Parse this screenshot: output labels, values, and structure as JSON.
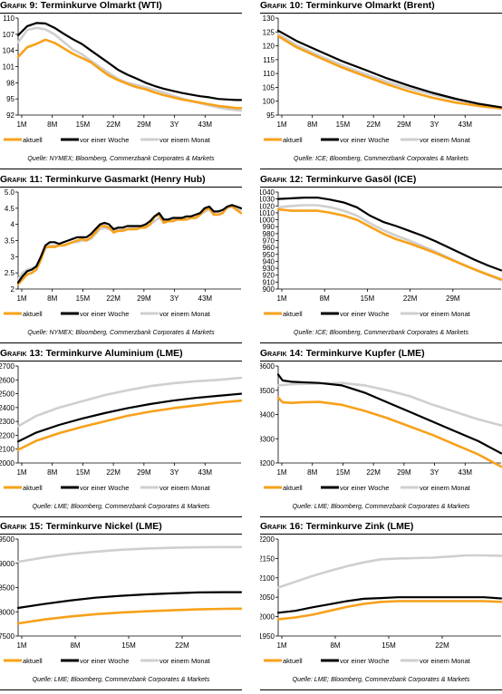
{
  "figure_prefix": "Grafik",
  "colors": {
    "aktuell": "#f7a11a",
    "woche": "#000000",
    "monat": "#cfcfcf"
  },
  "chart_data": [
    {
      "type": "line",
      "number": "9:",
      "title": "Terminkurve Olmarkt (WTI)",
      "xticks": [
        "1M",
        "8M",
        "15M",
        "22M",
        "29M",
        "3Y",
        "43M"
      ],
      "ylim": [
        92,
        110
      ],
      "yticks": [
        "92",
        "95",
        "98",
        "101",
        "104",
        "107",
        "110"
      ],
      "legend": [
        "aktuell",
        "vor einer Woche",
        "vor einem Monat"
      ],
      "legend_offsets": [
        0,
        63,
        151
      ],
      "source": "Quelle: NYMEX; Bloomberg, Commerzbank Corporates & Markets",
      "x": [
        1,
        3,
        5,
        7,
        9,
        11,
        13,
        15,
        17,
        19,
        21,
        23,
        25,
        27,
        29,
        31,
        33,
        35,
        37,
        39,
        41,
        43,
        45,
        47,
        49,
        50
      ],
      "series": [
        {
          "name": "aktuell",
          "values": [
            102.8,
            104.6,
            105.2,
            106.0,
            105.4,
            104.4,
            103.4,
            102.6,
            101.8,
            100.5,
            99.3,
            98.5,
            97.8,
            97.2,
            96.8,
            96.2,
            95.7,
            95.3,
            94.9,
            94.6,
            94.3,
            94.0,
            93.7,
            93.5,
            93.3,
            93.3
          ]
        },
        {
          "name": "vor einer Woche",
          "values": [
            106.8,
            108.5,
            109.1,
            109.0,
            108.2,
            107.1,
            106.1,
            105.2,
            104.0,
            102.8,
            101.6,
            100.4,
            99.5,
            98.8,
            98.0,
            97.4,
            96.9,
            96.5,
            96.1,
            95.8,
            95.5,
            95.3,
            95.0,
            94.9,
            94.8,
            94.8
          ]
        },
        {
          "name": "vor einem Monat",
          "values": [
            105.5,
            107.8,
            108.2,
            107.9,
            107.0,
            105.6,
            104.2,
            103.3,
            102.1,
            100.9,
            99.8,
            98.7,
            98.0,
            97.6,
            97.2,
            96.7,
            96.2,
            95.6,
            95.1,
            94.6,
            94.2,
            93.8,
            93.4,
            93.1,
            92.9,
            92.8
          ]
        }
      ]
    },
    {
      "type": "line",
      "number": "10:",
      "title": "Terminkurve Olmarkt (Brent)",
      "xticks": [
        "1M",
        "8M",
        "15M",
        "22M",
        "29M",
        "3Y",
        "43M"
      ],
      "ylim": [
        95,
        130
      ],
      "yticks": [
        "95",
        "100",
        "105",
        "110",
        "115",
        "120",
        "125",
        "130"
      ],
      "legend": [
        "aktuell",
        "vor einer Woche",
        "vor einem Monat"
      ],
      "legend_offsets": [
        0,
        63,
        151
      ],
      "source": "Quelle: ICE; Bloomberg, Commerzbank Corporates & Markets",
      "x": [
        1,
        5,
        10,
        15,
        20,
        25,
        30,
        35,
        40,
        45,
        50
      ],
      "series": [
        {
          "name": "aktuell",
          "values": [
            123.5,
            119.5,
            115.8,
            112.2,
            109.1,
            106.1,
            103.4,
            101.2,
            99.5,
            98.3,
            97.4
          ]
        },
        {
          "name": "vor einer Woche",
          "values": [
            125.5,
            121.8,
            118.1,
            114.5,
            111.4,
            108.2,
            105.5,
            103.0,
            100.9,
            99.1,
            97.8
          ]
        },
        {
          "name": "vor einem Monat",
          "values": [
            124.3,
            120.3,
            116.5,
            113.0,
            109.9,
            107.0,
            104.5,
            102.4,
            100.6,
            99.0,
            97.7
          ]
        }
      ]
    },
    {
      "type": "line",
      "number": "11:",
      "title": "Terminkurve Gasmarkt (Henry Hub)",
      "xticks": [
        "1M",
        "8M",
        "15M",
        "22M",
        "29M",
        "3Y",
        "43M"
      ],
      "ylim": [
        2.0,
        5.0
      ],
      "yticks": [
        "2",
        "2.5",
        "3",
        "3.5",
        "4",
        "4.5",
        "5.0"
      ],
      "legend": [
        "aktuell",
        "vor einer Woche",
        "vor einem Monat"
      ],
      "legend_offsets": [
        0,
        63,
        151
      ],
      "source": "Quelle: NYMEX; Bloomberg, Commerzbank Corporates & Markets",
      "x": [
        1,
        2,
        3,
        4,
        5,
        6,
        7,
        8,
        9,
        10,
        11,
        12,
        13,
        14,
        15,
        16,
        17,
        18,
        19,
        20,
        21,
        22,
        23,
        24,
        25,
        26,
        27,
        28,
        29,
        30,
        31,
        32,
        33,
        34,
        35,
        36,
        37,
        38,
        39,
        40,
        41,
        42,
        43,
        44,
        45,
        46,
        47,
        48,
        49,
        50
      ],
      "series": [
        {
          "name": "aktuell",
          "values": [
            2.15,
            2.3,
            2.45,
            2.5,
            2.6,
            2.9,
            3.3,
            3.3,
            3.3,
            3.35,
            3.35,
            3.4,
            3.45,
            3.5,
            3.55,
            3.5,
            3.6,
            3.75,
            3.95,
            3.95,
            3.9,
            3.75,
            3.8,
            3.8,
            3.85,
            3.85,
            3.85,
            3.9,
            3.9,
            4.0,
            4.25,
            4.3,
            4.05,
            4.1,
            4.1,
            4.15,
            4.15,
            4.15,
            4.2,
            4.2,
            4.3,
            4.45,
            4.5,
            4.3,
            4.3,
            4.35,
            4.55,
            4.55,
            4.45,
            4.35
          ]
        },
        {
          "name": "vor einer Woche",
          "values": [
            2.2,
            2.4,
            2.55,
            2.6,
            2.7,
            3.0,
            3.35,
            3.45,
            3.45,
            3.4,
            3.45,
            3.5,
            3.55,
            3.6,
            3.6,
            3.6,
            3.7,
            3.85,
            4.0,
            4.05,
            4.0,
            3.85,
            3.9,
            3.9,
            3.95,
            3.95,
            3.95,
            3.95,
            4.0,
            4.1,
            4.25,
            4.35,
            4.15,
            4.15,
            4.2,
            4.2,
            4.2,
            4.25,
            4.25,
            4.3,
            4.35,
            4.5,
            4.55,
            4.4,
            4.4,
            4.45,
            4.55,
            4.6,
            4.55,
            4.5
          ]
        },
        {
          "name": "vor einem Monat",
          "values": [
            2.3,
            2.5,
            2.6,
            2.65,
            2.7,
            2.95,
            3.25,
            3.35,
            3.35,
            3.35,
            3.35,
            3.4,
            3.45,
            3.45,
            3.5,
            3.5,
            3.55,
            3.7,
            3.85,
            3.9,
            3.85,
            3.8,
            3.85,
            3.85,
            3.85,
            3.9,
            3.9,
            3.9,
            3.95,
            4.0,
            4.1,
            4.2,
            4.1,
            4.1,
            4.15,
            4.15,
            4.15,
            4.2,
            4.2,
            4.2,
            4.3,
            4.4,
            4.45,
            4.35,
            4.4,
            4.4,
            4.5,
            4.55,
            4.5,
            4.45
          ]
        }
      ]
    },
    {
      "type": "line",
      "number": "12:",
      "title": "Terminkurve Gasöl (ICE)",
      "xticks": [
        "1M",
        "8M",
        "15M",
        "22M",
        "29M"
      ],
      "ylim": [
        900,
        1040
      ],
      "yticks": [
        "900",
        "910",
        "920",
        "930",
        "940",
        "950",
        "960",
        "970",
        "980",
        "990",
        "1000",
        "1010",
        "1020",
        "1030",
        "1040"
      ],
      "legend": [
        "aktuell",
        "vor einer Woche",
        "vor einem Monat"
      ],
      "legend_offsets": [
        0,
        63,
        151
      ],
      "source": "Quelle: ICE; Bloomberg, Commerzbank Corporates & Markets",
      "x": [
        1,
        3,
        5,
        7,
        9,
        11,
        13,
        15,
        17,
        19,
        21,
        23,
        25,
        27,
        29,
        31,
        33,
        35
      ],
      "series": [
        {
          "name": "aktuell",
          "values": [
            1015,
            1013,
            1013,
            1013,
            1010,
            1006,
            1000,
            990,
            980,
            972,
            966,
            959,
            952,
            944,
            936,
            928,
            921,
            914
          ]
        },
        {
          "name": "vor einer Woche",
          "values": [
            1030,
            1031,
            1032,
            1032,
            1029,
            1025,
            1018,
            1006,
            997,
            991,
            984,
            977,
            969,
            960,
            951,
            942,
            934,
            927
          ]
        },
        {
          "name": "vor einem Monat",
          "values": [
            1018,
            1020,
            1021,
            1021,
            1018,
            1013,
            1006,
            995,
            985,
            977,
            970,
            962,
            954,
            945,
            936,
            928,
            920,
            913
          ]
        }
      ]
    },
    {
      "type": "line",
      "number": "13:",
      "title": "Terminkurve Aluminium (LME)",
      "xticks": [
        "1M",
        "8M",
        "15M",
        "22M",
        "29M",
        "3Y",
        "43M"
      ],
      "ylim": [
        2000,
        2700
      ],
      "yticks": [
        "2000",
        "2100",
        "2200",
        "2300",
        "2400",
        "2500",
        "2600",
        "2700"
      ],
      "legend": [
        "aktuell",
        "vor einer Woche",
        "vor einem Monat"
      ],
      "legend_offsets": [
        0,
        63,
        151
      ],
      "source": "Quelle: LME; Bloomberg, Commerzbank Corporates & Markets",
      "x": [
        1,
        5,
        10,
        15,
        20,
        25,
        30,
        35,
        40,
        45,
        50
      ],
      "series": [
        {
          "name": "aktuell",
          "values": [
            2095,
            2160,
            2215,
            2260,
            2300,
            2340,
            2370,
            2395,
            2415,
            2435,
            2450
          ]
        },
        {
          "name": "vor einer Woche",
          "values": [
            2155,
            2220,
            2275,
            2320,
            2360,
            2395,
            2425,
            2450,
            2470,
            2485,
            2500
          ]
        },
        {
          "name": "vor einem Monat",
          "values": [
            2265,
            2340,
            2400,
            2445,
            2490,
            2525,
            2555,
            2575,
            2590,
            2600,
            2615
          ]
        }
      ]
    },
    {
      "type": "line",
      "number": "14:",
      "title": "Terminkurve Kupfer (LME)",
      "xticks": [
        "1M",
        "8M",
        "15M",
        "22M",
        "29M",
        "3Y",
        "43M"
      ],
      "ylim": [
        8200,
        8600
      ],
      "yticks": [
        "8200",
        "8300",
        "8400",
        "8500",
        "8600"
      ],
      "legend": [
        "aktuell",
        "vor einer Woche",
        "vor einem Monat"
      ],
      "legend_offsets": [
        0,
        63,
        151
      ],
      "source": "Quelle: LME; Bloomberg, Commerzbank Corporates & Markets",
      "x": [
        1,
        2,
        4,
        6,
        10,
        15,
        20,
        25,
        30,
        35,
        40,
        45,
        50
      ],
      "series": [
        {
          "name": "aktuell",
          "values": [
            8470,
            8450,
            8448,
            8450,
            8452,
            8440,
            8415,
            8385,
            8350,
            8315,
            8275,
            8235,
            8185
          ]
        },
        {
          "name": "vor einer Woche",
          "values": [
            8565,
            8540,
            8535,
            8533,
            8530,
            8520,
            8490,
            8450,
            8410,
            8370,
            8330,
            8290,
            8240
          ]
        },
        {
          "name": "vor einem Monat",
          "values": [
            8520,
            8522,
            8525,
            8526,
            8528,
            8530,
            8520,
            8500,
            8475,
            8440,
            8410,
            8380,
            8355
          ]
        }
      ]
    },
    {
      "type": "line",
      "number": "15:",
      "title": "Terminkurve Nickel (LME)",
      "xticks": [
        "1M",
        "8M",
        "15M",
        "22M"
      ],
      "ylim": [
        17500,
        19500
      ],
      "yticks": [
        "17500",
        "18000",
        "18500",
        "19000",
        "19500"
      ],
      "legend": [
        "aktuell",
        "vor einer Woche",
        "vor einem Monat"
      ],
      "legend_offsets": [
        0,
        63,
        151
      ],
      "source": "Quelle: LME; Bloomberg, Commerzbank Corporates & Markets",
      "x": [
        1,
        4,
        7,
        10,
        13,
        16,
        19,
        22,
        25,
        27
      ],
      "series": [
        {
          "name": "aktuell",
          "values": [
            17760,
            17840,
            17900,
            17950,
            17985,
            18010,
            18030,
            18050,
            18060,
            18065
          ]
        },
        {
          "name": "vor einer Woche",
          "values": [
            18080,
            18160,
            18230,
            18290,
            18330,
            18360,
            18380,
            18400,
            18405,
            18405
          ]
        },
        {
          "name": "vor einem Monat",
          "values": [
            19030,
            19120,
            19190,
            19240,
            19280,
            19305,
            19320,
            19330,
            19335,
            19335
          ]
        }
      ]
    },
    {
      "type": "line",
      "number": "16:",
      "title": "Terminkurve Zink (LME)",
      "xticks": [
        "1M",
        "8M",
        "15M",
        "22M"
      ],
      "ylim": [
        1950,
        2200
      ],
      "yticks": [
        "1950",
        "2000",
        "2050",
        "2100",
        "2150",
        "2200"
      ],
      "legend": [
        "aktuell",
        "vor einer Woche",
        "vor einem Monat"
      ],
      "legend_offsets": [
        0,
        63,
        151
      ],
      "source": "Quelle: LME; Bloomberg, Commerzbank Corporates & Markets",
      "x": [
        1,
        3,
        5,
        7,
        9,
        11,
        13,
        15,
        17,
        19,
        21,
        23,
        25,
        27
      ],
      "series": [
        {
          "name": "aktuell",
          "values": [
            1993,
            1998,
            2005,
            2015,
            2025,
            2033,
            2038,
            2040,
            2040,
            2040,
            2040,
            2040,
            2040,
            2038
          ]
        },
        {
          "name": "vor einer Woche",
          "values": [
            2010,
            2015,
            2024,
            2032,
            2040,
            2046,
            2048,
            2050,
            2050,
            2050,
            2050,
            2050,
            2050,
            2047
          ]
        },
        {
          "name": "vor einem Monat",
          "values": [
            2075,
            2090,
            2105,
            2118,
            2130,
            2140,
            2148,
            2150,
            2151,
            2152,
            2155,
            2158,
            2158,
            2157
          ]
        }
      ]
    }
  ]
}
